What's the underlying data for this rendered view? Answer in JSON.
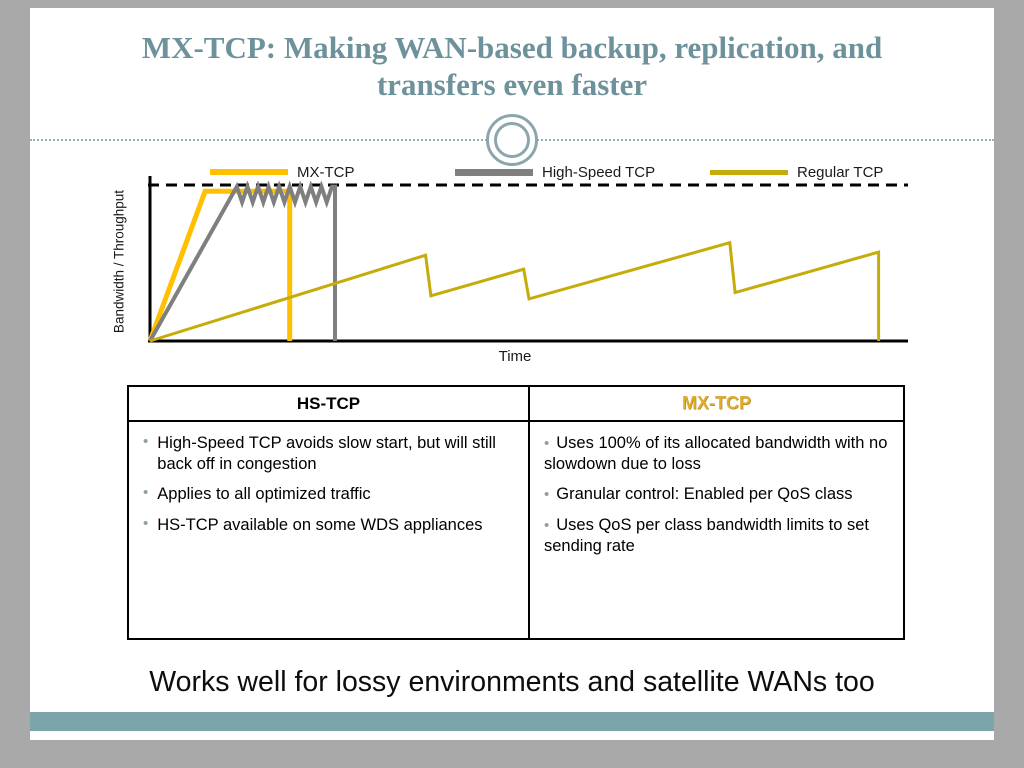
{
  "slide": {
    "title": "MX-TCP: Making WAN-based backup, replication, and transfers even faster",
    "takeaway": "Works well for lossy environments and satellite WANs too"
  },
  "colors": {
    "title_text": "#6d929b",
    "footer_band": "#7ba5ab",
    "mx_tcp_gold": "#FFC000",
    "hs_tcp_gray": "#7F7F7F",
    "regular_tcp_olive": "#C6AC0A",
    "table_mx_header_gold": "#DFAC2E",
    "bullet_dot": "#8ba0ac"
  },
  "chart_data": {
    "type": "line",
    "title": "",
    "xlabel": "Time",
    "ylabel": "Bandwidth / Throughput",
    "legend_position": "top",
    "grid": false,
    "axes_numeric": false,
    "x_range_pct_of_time": [
      0,
      100
    ],
    "y_range_pct_of_link_capacity": [
      0,
      100
    ],
    "capacity_reference_line": {
      "style": "dashed",
      "color": "#000000",
      "value": 100
    },
    "series": [
      {
        "name": "MX-TCP",
        "color": "#FFC000",
        "width": 5,
        "points": [
          [
            0,
            0
          ],
          [
            7.3,
            96
          ],
          [
            18.5,
            96
          ],
          [
            18.5,
            0
          ]
        ]
      },
      {
        "name": "High-Speed TCP",
        "color": "#7F7F7F",
        "width": 4,
        "points": [
          [
            0,
            0
          ],
          [
            11.5,
            99
          ],
          [
            12.2,
            89
          ],
          [
            12.9,
            99
          ],
          [
            13.6,
            89
          ],
          [
            14.3,
            99
          ],
          [
            15.0,
            89
          ],
          [
            15.7,
            99
          ],
          [
            16.4,
            89
          ],
          [
            17.1,
            99
          ],
          [
            17.8,
            89
          ],
          [
            18.5,
            99
          ],
          [
            19.2,
            89
          ],
          [
            19.9,
            99
          ],
          [
            20.6,
            89
          ],
          [
            21.3,
            99
          ],
          [
            22.0,
            89
          ],
          [
            22.7,
            99
          ],
          [
            23.4,
            89
          ],
          [
            24.1,
            99
          ],
          [
            24.5,
            99
          ],
          [
            24.5,
            0
          ]
        ]
      },
      {
        "name": "Regular TCP",
        "color": "#C6AC0A",
        "width": 3,
        "points": [
          [
            0,
            0
          ],
          [
            36.5,
            55
          ],
          [
            37.2,
            29
          ],
          [
            49.5,
            46
          ],
          [
            50.2,
            27
          ],
          [
            76.8,
            63
          ],
          [
            77.5,
            31
          ],
          [
            96.5,
            57
          ],
          [
            96.5,
            0
          ]
        ]
      }
    ]
  },
  "legend": {
    "items": [
      {
        "label": "MX-TCP"
      },
      {
        "label": "High-Speed TCP"
      },
      {
        "label": "Regular TCP"
      }
    ]
  },
  "table": {
    "columns": [
      {
        "header": "HS-TCP",
        "header_color": "#000000",
        "bullets": [
          "High-Speed TCP avoids slow start, but will still back off in congestion",
          "Applies to all optimized traffic",
          "HS-TCP available on some WDS appliances"
        ]
      },
      {
        "header": "MX-TCP",
        "header_color": "#DFAC2E",
        "bullets": [
          "Uses 100% of its allocated bandwidth with no slowdown due to loss",
          "Granular control: Enabled per QoS class",
          "Uses QoS per class bandwidth limits to set sending rate"
        ]
      }
    ]
  }
}
